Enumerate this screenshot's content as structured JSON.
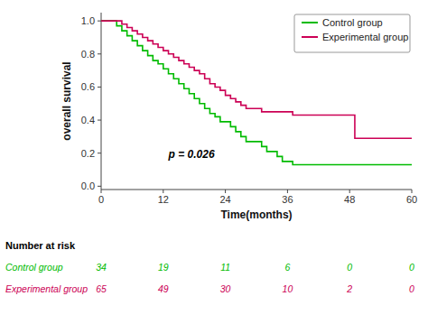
{
  "chart_data": {
    "type": "step",
    "xlabel": "Time(months)",
    "ylabel": "overall survival",
    "xlim": [
      0,
      60
    ],
    "ylim": [
      -0.02,
      1.05
    ],
    "xticks": [
      0,
      12,
      24,
      36,
      48,
      60
    ],
    "yticks": [
      {
        "value": 0.0,
        "label": "0.0"
      },
      0.2,
      0.4,
      0.6,
      0.8,
      {
        "value": 1.0,
        "label": "1.0"
      }
    ],
    "grid": false,
    "legend": "upper right",
    "series": [
      {
        "name": "Control group",
        "color": "#00bb00",
        "x": [
          0,
          2,
          3,
          4,
          5,
          6,
          7,
          8,
          9,
          10,
          11,
          12,
          13,
          14,
          15,
          16,
          17,
          18,
          19,
          20,
          21,
          22,
          23,
          24,
          25,
          26,
          27,
          28,
          29,
          30,
          31,
          32,
          33,
          34,
          35,
          36,
          37,
          38,
          40,
          42,
          43,
          44,
          45,
          46,
          60
        ],
        "values": [
          1.0,
          1.0,
          0.97,
          0.94,
          0.91,
          0.88,
          0.85,
          0.82,
          0.79,
          0.76,
          0.74,
          0.71,
          0.68,
          0.65,
          0.62,
          0.59,
          0.56,
          0.53,
          0.5,
          0.47,
          0.44,
          0.42,
          0.39,
          0.39,
          0.36,
          0.33,
          0.3,
          0.27,
          0.27,
          0.27,
          0.24,
          0.21,
          0.21,
          0.18,
          0.15,
          0.15,
          0.13,
          0.13,
          0.13,
          0.13,
          0.13,
          0.13,
          0.13,
          0.13,
          0.13
        ]
      },
      {
        "name": "Experimental group",
        "color": "#cc0055",
        "x": [
          0,
          3,
          4,
          5,
          6,
          7,
          8,
          9,
          10,
          11,
          12,
          13,
          14,
          15,
          16,
          17,
          18,
          19,
          20,
          21,
          22,
          23,
          24,
          25,
          26,
          27,
          28,
          29,
          30,
          31,
          32,
          33,
          34,
          35,
          36,
          37,
          38,
          39,
          40,
          41,
          42,
          43,
          44,
          45,
          46,
          47,
          48,
          49,
          60
        ],
        "values": [
          1.0,
          1.0,
          0.98,
          0.96,
          0.94,
          0.92,
          0.9,
          0.88,
          0.86,
          0.84,
          0.82,
          0.8,
          0.78,
          0.76,
          0.74,
          0.72,
          0.7,
          0.68,
          0.65,
          0.62,
          0.6,
          0.58,
          0.55,
          0.53,
          0.51,
          0.49,
          0.47,
          0.47,
          0.47,
          0.45,
          0.45,
          0.45,
          0.45,
          0.45,
          0.45,
          0.43,
          0.43,
          0.43,
          0.43,
          0.43,
          0.43,
          0.43,
          0.43,
          0.43,
          0.43,
          0.43,
          0.43,
          0.29,
          0.29
        ]
      }
    ],
    "annotations": [
      {
        "text": "p = 0.026",
        "x": 13,
        "y": 0.17
      }
    ],
    "risk_table": {
      "title": "Number at risk",
      "x": [
        0,
        12,
        24,
        36,
        48,
        60
      ],
      "rows": [
        {
          "name": "Control group",
          "color": "#00bb00",
          "values": [
            34,
            19,
            11,
            6,
            0,
            0
          ]
        },
        {
          "name": "Experimental group",
          "color": "#cc0055",
          "values": [
            65,
            49,
            30,
            10,
            2,
            0
          ]
        }
      ]
    }
  }
}
